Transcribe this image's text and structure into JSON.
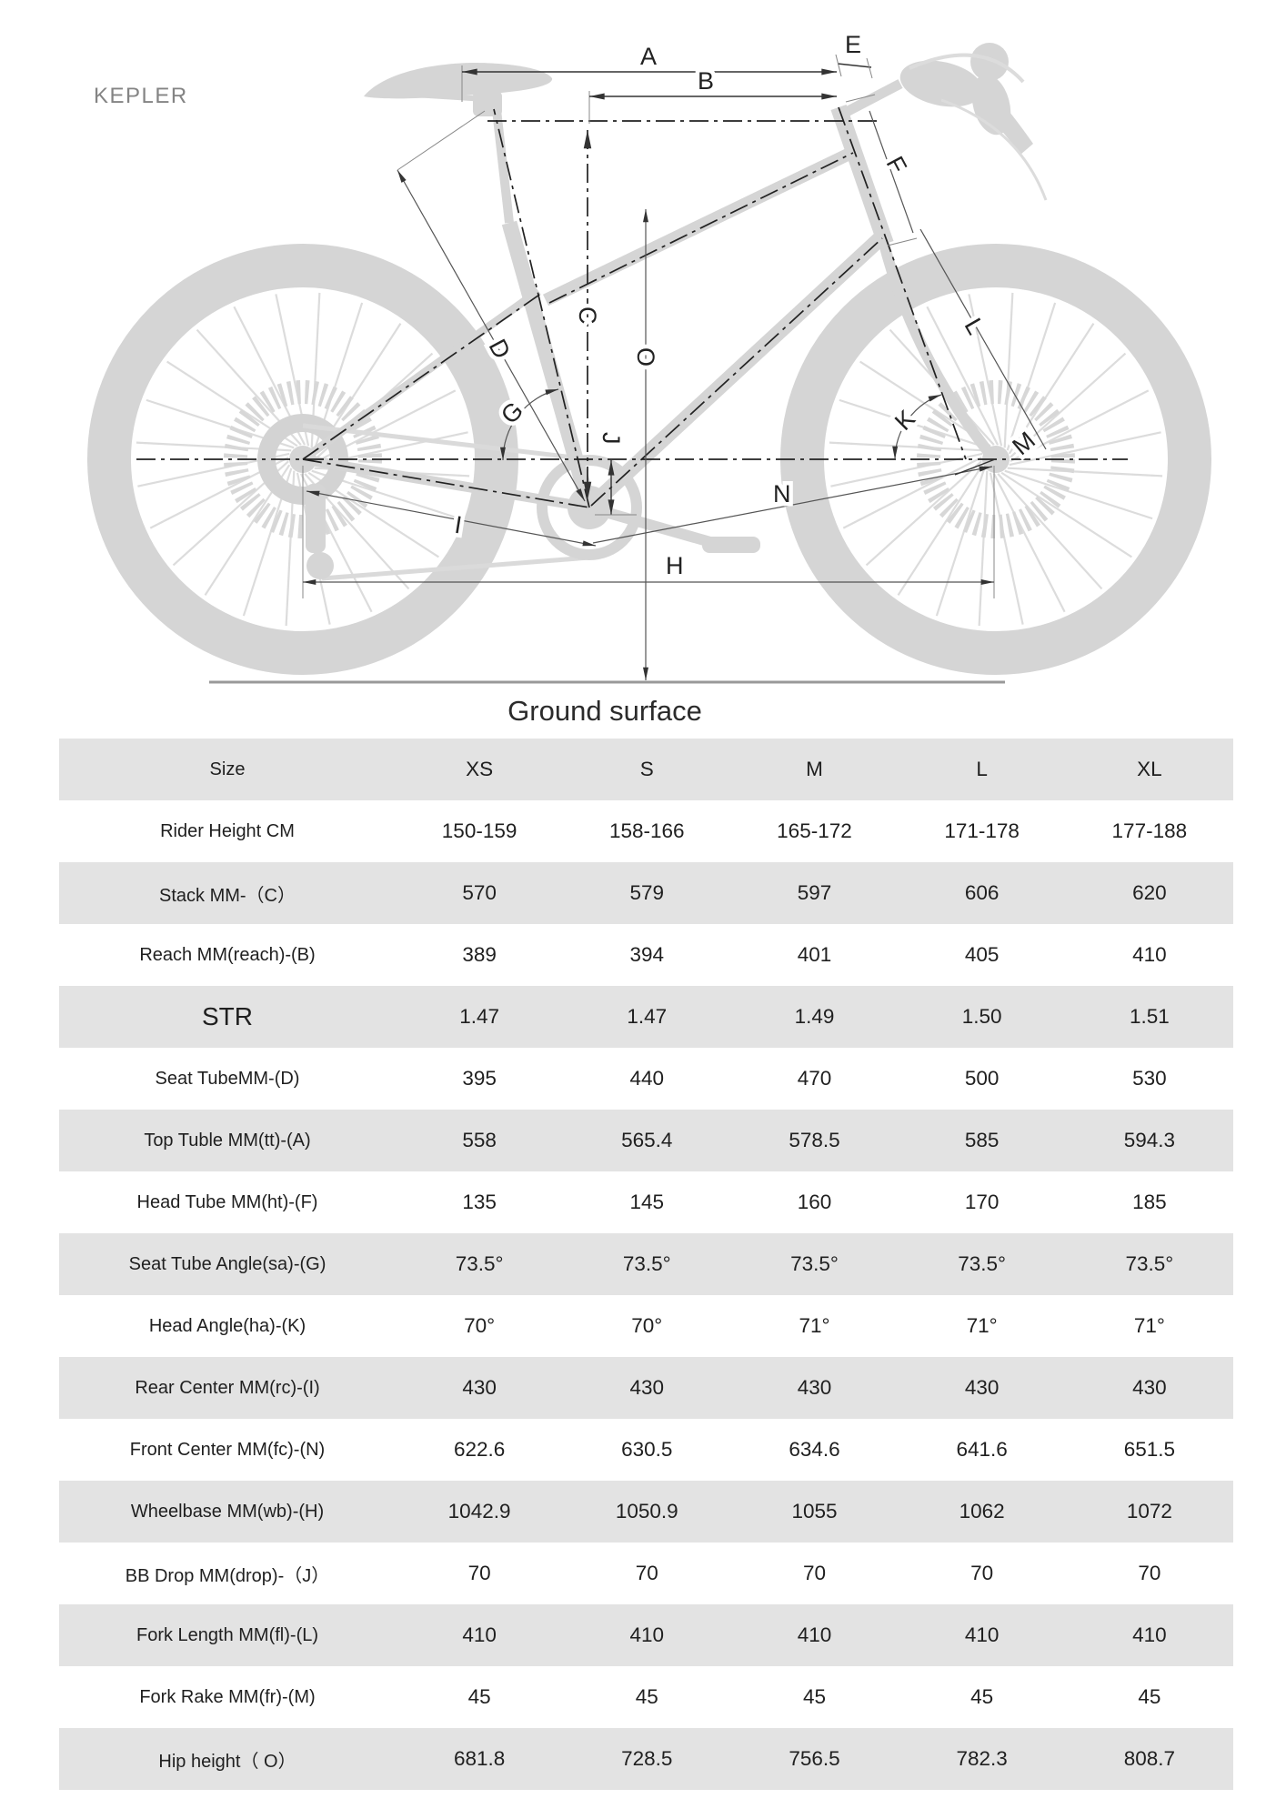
{
  "brand": "KEPLER",
  "diagram": {
    "ground_label": "Ground surface",
    "labels": {
      "A": "A",
      "B": "B",
      "C": "C",
      "D": "D",
      "E": "E",
      "F": "F",
      "G": "G",
      "H": "H",
      "I": "I",
      "J": "J",
      "K": "K",
      "L": "L",
      "M": "M",
      "N": "N",
      "O": "O"
    }
  },
  "table": {
    "rows": [
      {
        "label": "Size",
        "values": [
          "XS",
          "S",
          "M",
          "L",
          "XL"
        ]
      },
      {
        "label": "Rider Height CM",
        "values": [
          "150-159",
          "158-166",
          "165-172",
          "171-178",
          "177-188"
        ]
      },
      {
        "label": "Stack MM-（C）",
        "values": [
          "570",
          "579",
          "597",
          "606",
          "620"
        ]
      },
      {
        "label": "Reach MM(reach)-(B)",
        "values": [
          "389",
          "394",
          "401",
          "405",
          "410"
        ]
      },
      {
        "label": "STR",
        "values": [
          "1.47",
          "1.47",
          "1.49",
          "1.50",
          "1.51"
        ],
        "emphasis": true
      },
      {
        "label": "Seat TubeMM-(D)",
        "values": [
          "395",
          "440",
          "470",
          "500",
          "530"
        ]
      },
      {
        "label": "Top Tuble MM(tt)-(A)",
        "values": [
          "558",
          "565.4",
          "578.5",
          "585",
          "594.3"
        ]
      },
      {
        "label": "Head Tube MM(ht)-(F)",
        "values": [
          "135",
          "145",
          "160",
          "170",
          "185"
        ]
      },
      {
        "label": "Seat Tube Angle(sa)-(G)",
        "values": [
          "73.5°",
          "73.5°",
          "73.5°",
          "73.5°",
          "73.5°"
        ]
      },
      {
        "label": "Head Angle(ha)-(K)",
        "values": [
          "70°",
          "70°",
          "71°",
          "71°",
          "71°"
        ]
      },
      {
        "label": "Rear Center MM(rc)-(I)",
        "values": [
          "430",
          "430",
          "430",
          "430",
          "430"
        ]
      },
      {
        "label": "Front Center MM(fc)-(N)",
        "values": [
          "622.6",
          "630.5",
          "634.6",
          "641.6",
          "651.5"
        ]
      },
      {
        "label": "Wheelbase MM(wb)-(H)",
        "values": [
          "1042.9",
          "1050.9",
          "1055",
          "1062",
          "1072"
        ]
      },
      {
        "label": "BB Drop MM(drop)-（J）",
        "values": [
          "70",
          "70",
          "70",
          "70",
          "70"
        ]
      },
      {
        "label": "Fork Length MM(fl)-(L)",
        "values": [
          "410",
          "410",
          "410",
          "410",
          "410"
        ]
      },
      {
        "label": "Fork Rake MM(fr)-(M)",
        "values": [
          "45",
          "45",
          "45",
          "45",
          "45"
        ]
      },
      {
        "label": "Hip height（ O）",
        "values": [
          "681.8",
          "728.5",
          "756.5",
          "782.3",
          "808.7"
        ]
      }
    ]
  }
}
